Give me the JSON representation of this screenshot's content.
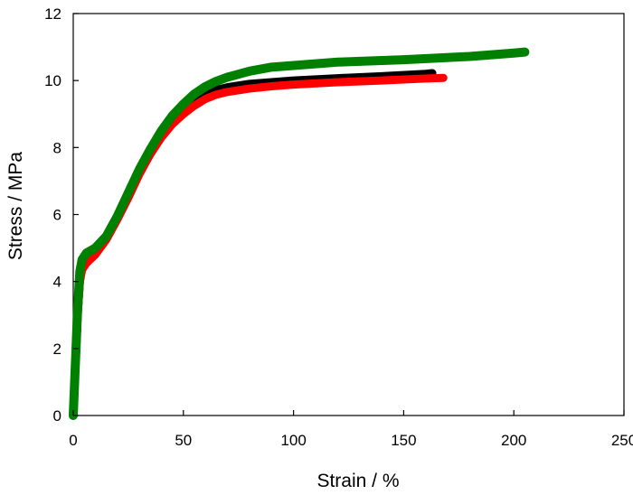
{
  "chart_data": {
    "type": "line",
    "title": "",
    "xlabel": "Strain / %",
    "ylabel": "Stress / MPa",
    "xlim": [
      0,
      250
    ],
    "ylim": [
      0,
      12
    ],
    "xticks": [
      0,
      50,
      100,
      150,
      200,
      250
    ],
    "yticks": [
      0,
      2,
      4,
      6,
      8,
      10,
      12
    ],
    "grid": false,
    "legend": "none",
    "series": [
      {
        "color": "#000000",
        "points": [
          [
            0,
            0
          ],
          [
            1,
            1.5
          ],
          [
            2,
            3.0
          ],
          [
            3,
            4.0
          ],
          [
            4,
            4.45
          ],
          [
            6,
            4.7
          ],
          [
            10,
            4.9
          ],
          [
            15,
            5.3
          ],
          [
            20,
            5.9
          ],
          [
            25,
            6.6
          ],
          [
            30,
            7.3
          ],
          [
            35,
            7.9
          ],
          [
            40,
            8.4
          ],
          [
            45,
            8.8
          ],
          [
            50,
            9.15
          ],
          [
            55,
            9.4
          ],
          [
            60,
            9.6
          ],
          [
            65,
            9.72
          ],
          [
            70,
            9.8
          ],
          [
            80,
            9.9
          ],
          [
            90,
            9.95
          ],
          [
            100,
            10.0
          ],
          [
            120,
            10.07
          ],
          [
            140,
            10.13
          ],
          [
            160,
            10.2
          ],
          [
            163,
            10.22
          ]
        ]
      },
      {
        "color": "#ff0000",
        "points": [
          [
            0,
            0
          ],
          [
            1,
            1.5
          ],
          [
            2,
            3.0
          ],
          [
            3,
            4.0
          ],
          [
            4,
            4.35
          ],
          [
            6,
            4.55
          ],
          [
            10,
            4.8
          ],
          [
            15,
            5.25
          ],
          [
            20,
            5.85
          ],
          [
            25,
            6.5
          ],
          [
            30,
            7.2
          ],
          [
            35,
            7.8
          ],
          [
            40,
            8.3
          ],
          [
            45,
            8.7
          ],
          [
            50,
            9.0
          ],
          [
            55,
            9.25
          ],
          [
            60,
            9.45
          ],
          [
            65,
            9.58
          ],
          [
            70,
            9.66
          ],
          [
            80,
            9.76
          ],
          [
            90,
            9.83
          ],
          [
            100,
            9.88
          ],
          [
            120,
            9.95
          ],
          [
            140,
            10.0
          ],
          [
            160,
            10.06
          ],
          [
            168,
            10.08
          ]
        ]
      },
      {
        "color": "#008000",
        "points": [
          [
            0,
            0
          ],
          [
            1,
            1.6
          ],
          [
            2,
            3.2
          ],
          [
            3,
            4.3
          ],
          [
            4,
            4.65
          ],
          [
            6,
            4.85
          ],
          [
            10,
            5.0
          ],
          [
            15,
            5.35
          ],
          [
            20,
            5.95
          ],
          [
            25,
            6.65
          ],
          [
            30,
            7.35
          ],
          [
            35,
            7.95
          ],
          [
            40,
            8.5
          ],
          [
            45,
            8.95
          ],
          [
            50,
            9.3
          ],
          [
            55,
            9.6
          ],
          [
            60,
            9.82
          ],
          [
            65,
            9.98
          ],
          [
            70,
            10.1
          ],
          [
            80,
            10.28
          ],
          [
            90,
            10.4
          ],
          [
            100,
            10.45
          ],
          [
            120,
            10.55
          ],
          [
            150,
            10.62
          ],
          [
            180,
            10.72
          ],
          [
            200,
            10.82
          ],
          [
            205,
            10.85
          ]
        ]
      }
    ]
  }
}
